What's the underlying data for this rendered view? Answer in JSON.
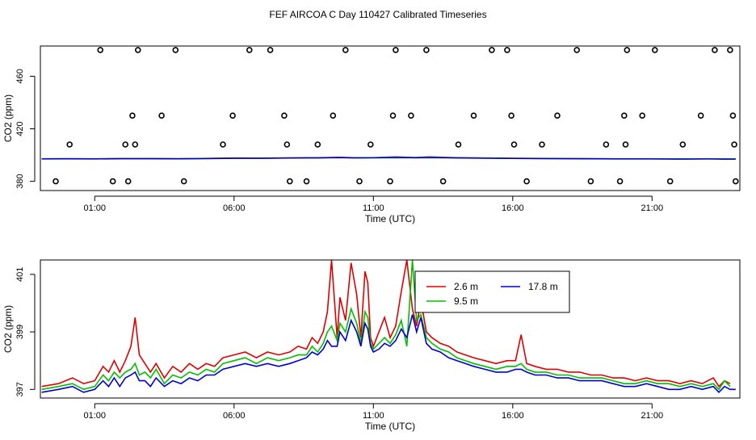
{
  "title": "FEF AIRCOA C  Day 110427  Calibrated Timeseries",
  "colors": {
    "red": "#e00000",
    "green": "#00c000",
    "blue": "#0000d0"
  },
  "chart_data": [
    {
      "type": "scatter",
      "name": "top",
      "xlabel": "Time (UTC)",
      "ylabel": "CO2 (ppm)",
      "xlim": [
        -0.95,
        24.15
      ],
      "ylim": [
        373,
        483
      ],
      "xticks": [
        1,
        6,
        11,
        16,
        21
      ],
      "xticklabels": [
        "01:00",
        "06:00",
        "11:00",
        "16:00",
        "21:00"
      ],
      "yticks": [
        380,
        420,
        460
      ],
      "yticklabels": [
        "380",
        "420",
        "460"
      ],
      "points_x": [
        -0.4,
        0.1,
        1.2,
        1.65,
        2.1,
        2.2,
        2.35,
        2.45,
        2.55,
        3.4,
        3.9,
        4.2,
        5.6,
        5.95,
        6.55,
        7.3,
        7.8,
        7.9,
        8.0,
        8.6,
        9.0,
        9.55,
        10.0,
        10.5,
        10.9,
        11.6,
        11.7,
        11.8,
        12.35,
        12.9,
        13.5,
        14.05,
        14.6,
        15.25,
        15.8,
        15.95,
        16.05,
        16.5,
        17.05,
        17.6,
        18.3,
        18.8,
        19.35,
        19.85,
        20.0,
        20.05,
        20.1,
        20.65,
        21.1,
        21.65,
        22.1,
        22.75,
        23.25,
        23.8,
        23.9,
        23.95,
        24.0
      ],
      "points_y": [
        380,
        408,
        480,
        380,
        408,
        380,
        430,
        408,
        480,
        430,
        480,
        380,
        408,
        430,
        480,
        480,
        430,
        408,
        380,
        380,
        408,
        430,
        480,
        380,
        408,
        380,
        430,
        480,
        430,
        480,
        380,
        408,
        430,
        480,
        480,
        430,
        408,
        380,
        408,
        430,
        480,
        380,
        408,
        380,
        430,
        408,
        480,
        430,
        480,
        380,
        408,
        430,
        480,
        480,
        430,
        408,
        380
      ],
      "series": [
        {
          "name": "2.6 m",
          "color": "#e00000",
          "x": [
            -0.9,
            0,
            1,
            2,
            3,
            4,
            5,
            6,
            7,
            8,
            9,
            9.8,
            10.3,
            11,
            11.8,
            12.5,
            13,
            14,
            15,
            16,
            17,
            18,
            19,
            20,
            21,
            22,
            23,
            23.5,
            24
          ],
          "values": [
            397.2,
            397.3,
            397.2,
            397.4,
            397.4,
            397.3,
            397.5,
            397.8,
            397.7,
            397.9,
            398.1,
            398.4,
            398.0,
            398.1,
            398.6,
            398.2,
            398.7,
            398.1,
            397.8,
            397.6,
            397.5,
            397.4,
            397.3,
            397.2,
            397.2,
            397.1,
            397.2,
            397.1,
            397.1
          ]
        },
        {
          "name": "9.5 m",
          "color": "#00c000",
          "x": [
            -0.9,
            0,
            1,
            2,
            3,
            4,
            5,
            6,
            7,
            8,
            9,
            9.8,
            10.3,
            11,
            11.8,
            12.5,
            13,
            14,
            15,
            16,
            17,
            18,
            19,
            20,
            21,
            22,
            23,
            23.5,
            24
          ],
          "values": [
            397.1,
            397.2,
            397.1,
            397.3,
            397.3,
            397.2,
            397.4,
            397.6,
            397.6,
            397.8,
            397.9,
            398.2,
            397.9,
            398.0,
            398.3,
            398.1,
            398.3,
            397.9,
            397.7,
            397.5,
            397.4,
            397.3,
            397.2,
            397.1,
            397.1,
            397.0,
            397.1,
            397.0,
            397.0
          ]
        },
        {
          "name": "17.8 m",
          "color": "#0000d0",
          "x": [
            -0.9,
            0,
            1,
            2,
            3,
            4,
            5,
            6,
            7,
            8,
            9,
            9.8,
            10.3,
            11,
            11.8,
            12.5,
            13,
            14,
            15,
            16,
            17,
            18,
            19,
            20,
            21,
            22,
            23,
            23.5,
            24
          ],
          "values": [
            397.0,
            397.1,
            397.0,
            397.2,
            397.2,
            397.1,
            397.3,
            397.5,
            397.5,
            397.7,
            397.8,
            398.0,
            397.8,
            397.9,
            398.1,
            397.9,
            398.1,
            397.8,
            397.6,
            397.4,
            397.3,
            397.2,
            397.1,
            397.0,
            397.0,
            396.9,
            397.0,
            396.9,
            396.9
          ]
        }
      ]
    },
    {
      "type": "line",
      "name": "bottom",
      "xlabel": "Time (UTC)",
      "ylabel": "CO2 (ppm)",
      "xlim": [
        -0.95,
        24.15
      ],
      "ylim": [
        396.7,
        401.5
      ],
      "xticks": [
        1,
        6,
        11,
        16,
        21
      ],
      "xticklabels": [
        "01:00",
        "06:00",
        "11:00",
        "16:00",
        "21:00"
      ],
      "yticks": [
        397,
        399,
        401
      ],
      "yticklabels": [
        "397",
        "399",
        "401"
      ],
      "legend": {
        "placement": "top-center",
        "ncol": 2
      },
      "series": [
        {
          "name": "2.6 m",
          "color": "#e00000",
          "x": [
            -0.9,
            -0.3,
            0.2,
            0.6,
            1.0,
            1.3,
            1.5,
            1.7,
            1.9,
            2.1,
            2.3,
            2.45,
            2.6,
            2.8,
            3.0,
            3.2,
            3.5,
            3.8,
            4.1,
            4.4,
            4.7,
            5.0,
            5.3,
            5.6,
            6.0,
            6.4,
            6.8,
            7.2,
            7.6,
            8.0,
            8.3,
            8.6,
            8.8,
            9.0,
            9.2,
            9.35,
            9.5,
            9.7,
            9.8,
            10.0,
            10.2,
            10.4,
            10.55,
            10.7,
            10.8,
            10.9,
            11.0,
            11.2,
            11.4,
            11.6,
            11.8,
            12.0,
            12.2,
            12.4,
            12.55,
            12.7,
            12.9,
            13.1,
            13.4,
            13.7,
            14.0,
            14.3,
            14.6,
            15.0,
            15.4,
            15.8,
            16.1,
            16.3,
            16.5,
            16.8,
            17.2,
            17.6,
            18.0,
            18.4,
            18.8,
            19.2,
            19.6,
            20.0,
            20.4,
            20.8,
            21.2,
            21.6,
            22.0,
            22.4,
            22.8,
            23.2,
            23.4,
            23.6,
            23.8
          ],
          "values": [
            397.1,
            397.2,
            397.4,
            397.2,
            397.3,
            397.8,
            397.6,
            398.0,
            397.6,
            398.0,
            398.5,
            399.5,
            398.2,
            397.9,
            397.6,
            397.9,
            397.4,
            397.8,
            397.6,
            397.9,
            397.7,
            397.9,
            397.8,
            398.1,
            398.2,
            398.3,
            398.1,
            398.3,
            398.2,
            398.3,
            398.5,
            398.4,
            398.8,
            398.6,
            399.0,
            399.7,
            401.5,
            398.8,
            400.2,
            399.4,
            401.4,
            400.3,
            398.8,
            401.1,
            400.7,
            398.8,
            398.5,
            399.0,
            399.5,
            398.8,
            399.2,
            400.4,
            401.5,
            399.8,
            399.2,
            400.1,
            399.0,
            398.8,
            398.6,
            398.5,
            398.3,
            398.2,
            398.1,
            398.0,
            397.9,
            398.0,
            398.0,
            398.9,
            397.9,
            397.8,
            397.7,
            397.7,
            397.6,
            397.6,
            397.5,
            397.5,
            397.4,
            397.4,
            397.3,
            397.4,
            397.3,
            397.3,
            397.2,
            397.3,
            397.2,
            397.4,
            397.1,
            397.3,
            397.2
          ]
        },
        {
          "name": "9.5 m",
          "color": "#00c000",
          "x": [
            -0.9,
            -0.3,
            0.2,
            0.6,
            1.0,
            1.3,
            1.5,
            1.7,
            1.9,
            2.1,
            2.3,
            2.45,
            2.6,
            2.8,
            3.0,
            3.2,
            3.5,
            3.8,
            4.1,
            4.4,
            4.7,
            5.0,
            5.3,
            5.6,
            6.0,
            6.4,
            6.8,
            7.2,
            7.6,
            8.0,
            8.3,
            8.6,
            8.8,
            9.0,
            9.2,
            9.35,
            9.5,
            9.7,
            9.8,
            10.0,
            10.2,
            10.4,
            10.55,
            10.7,
            10.8,
            10.9,
            11.0,
            11.2,
            11.4,
            11.6,
            11.8,
            12.0,
            12.2,
            12.4,
            12.55,
            12.7,
            12.9,
            13.1,
            13.4,
            13.7,
            14.0,
            14.3,
            14.6,
            15.0,
            15.4,
            15.8,
            16.1,
            16.3,
            16.5,
            16.8,
            17.2,
            17.6,
            18.0,
            18.4,
            18.8,
            19.2,
            19.6,
            20.0,
            20.4,
            20.8,
            21.2,
            21.6,
            22.0,
            22.4,
            22.8,
            23.2,
            23.4,
            23.6,
            23.8
          ],
          "values": [
            397.0,
            397.1,
            397.2,
            397.0,
            397.1,
            397.5,
            397.3,
            397.6,
            397.4,
            397.6,
            397.7,
            397.9,
            397.5,
            397.6,
            397.4,
            397.7,
            397.2,
            397.5,
            397.4,
            397.6,
            397.5,
            397.7,
            397.6,
            397.9,
            398.0,
            398.1,
            397.9,
            398.1,
            398.0,
            398.1,
            398.2,
            398.2,
            398.5,
            398.3,
            398.6,
            399.0,
            399.2,
            398.7,
            399.3,
            399.0,
            399.8,
            399.3,
            398.6,
            399.7,
            399.5,
            398.6,
            398.4,
            398.6,
            398.8,
            398.6,
            398.9,
            399.4,
            398.5,
            401.5,
            399.4,
            399.6,
            398.8,
            398.6,
            398.4,
            398.3,
            398.1,
            398.0,
            397.9,
            397.8,
            397.7,
            397.8,
            397.8,
            397.9,
            397.7,
            397.6,
            397.6,
            397.5,
            397.5,
            397.4,
            397.4,
            397.4,
            397.3,
            397.2,
            397.2,
            397.3,
            397.2,
            397.2,
            397.1,
            397.2,
            397.1,
            397.2,
            397.0,
            397.3,
            397.1
          ]
        },
        {
          "name": "17.8 m",
          "color": "#0000d0",
          "x": [
            -0.9,
            -0.3,
            0.2,
            0.6,
            1.0,
            1.3,
            1.5,
            1.7,
            1.9,
            2.1,
            2.3,
            2.45,
            2.6,
            2.8,
            3.0,
            3.2,
            3.5,
            3.8,
            4.1,
            4.4,
            4.7,
            5.0,
            5.3,
            5.6,
            6.0,
            6.4,
            6.8,
            7.2,
            7.6,
            8.0,
            8.3,
            8.6,
            8.8,
            9.0,
            9.2,
            9.35,
            9.5,
            9.7,
            9.8,
            10.0,
            10.2,
            10.4,
            10.55,
            10.7,
            10.8,
            10.9,
            11.0,
            11.2,
            11.4,
            11.6,
            11.8,
            12.0,
            12.2,
            12.4,
            12.55,
            12.7,
            12.9,
            13.1,
            13.4,
            13.7,
            14.0,
            14.3,
            14.6,
            15.0,
            15.4,
            15.8,
            16.1,
            16.3,
            16.5,
            16.8,
            17.2,
            17.6,
            18.0,
            18.4,
            18.8,
            19.2,
            19.6,
            20.0,
            20.4,
            20.8,
            21.2,
            21.6,
            22.0,
            22.4,
            22.8,
            23.2,
            23.4,
            23.6,
            23.8,
            24.0
          ],
          "values": [
            396.9,
            397.0,
            397.1,
            396.9,
            397.0,
            397.3,
            397.1,
            397.4,
            397.1,
            397.4,
            397.5,
            397.6,
            397.3,
            397.3,
            397.1,
            397.4,
            397.1,
            397.3,
            397.2,
            397.4,
            397.3,
            397.5,
            397.5,
            397.7,
            397.8,
            397.9,
            397.8,
            397.9,
            397.8,
            397.9,
            398.0,
            398.1,
            398.3,
            398.2,
            398.4,
            398.7,
            398.5,
            398.5,
            399.0,
            398.7,
            399.4,
            399.0,
            398.5,
            399.3,
            399.1,
            398.5,
            398.3,
            398.4,
            398.6,
            398.5,
            398.7,
            399.1,
            398.8,
            399.6,
            399.0,
            399.5,
            398.6,
            398.4,
            398.3,
            398.1,
            398.0,
            397.9,
            397.8,
            397.7,
            397.6,
            397.6,
            397.7,
            397.7,
            397.6,
            397.5,
            397.5,
            397.4,
            397.4,
            397.3,
            397.3,
            397.3,
            397.2,
            397.1,
            397.1,
            397.2,
            397.1,
            397.0,
            397.0,
            397.1,
            397.0,
            397.1,
            396.9,
            397.1,
            397.0,
            397.0
          ]
        }
      ]
    }
  ]
}
